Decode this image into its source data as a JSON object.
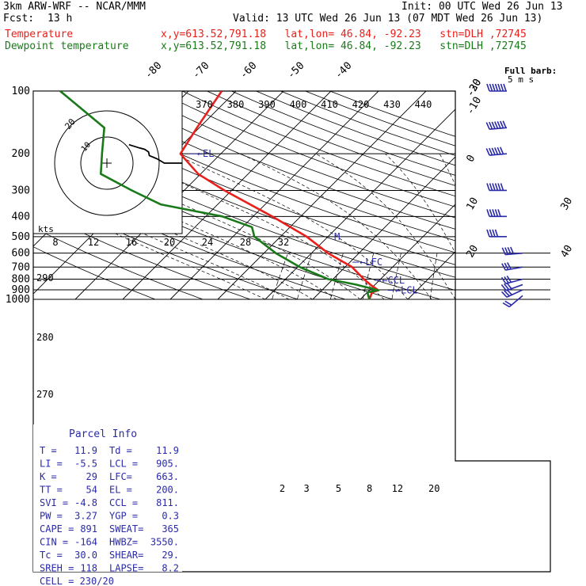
{
  "header": {
    "model": "3km ARW-WRF -- NCAR/MMM",
    "init": "Init: 00 UTC Wed 26 Jun 13",
    "fcst_label": "Fcst:",
    "fcst_value": "13 h",
    "valid": "Valid: 13 UTC Wed 26 Jun 13 (07 MDT Wed 26 Jun 13)",
    "temp_label": "Temperature",
    "temp_info": "x,y=613.52,791.18   lat,lon= 46.84, -92.23   stn=DLH ,72745",
    "dew_label": "Dewpoint temperature",
    "dew_info": "x,y=613.52,791.18   lat,lon= 46.84, -92.23   stn=DLH ,72745"
  },
  "colors": {
    "temperature": "#e8201c",
    "dewpoint": "#1a7a1a",
    "wind_barbs": "#2a2aaa",
    "parcel": "#2a2aaa",
    "hodograph": "#000000"
  },
  "chart_data": {
    "type": "line",
    "chart_kind": "skew-T log-p sounding",
    "pressure_levels": [
      100,
      200,
      300,
      400,
      500,
      600,
      700,
      800,
      900,
      1000
    ],
    "isotherm_labels_top": [
      -80,
      -70,
      -60,
      -50,
      -40
    ],
    "isotherm_labels_right": [
      -30,
      -20,
      -10,
      0,
      10,
      20,
      30,
      40
    ],
    "theta_labels": [
      370,
      380,
      390,
      400,
      410,
      420,
      430,
      440
    ],
    "theta_left_labels": [
      290,
      280,
      270
    ],
    "mixing_ratio_labels": [
      2,
      3,
      5,
      8,
      12,
      20
    ],
    "wind_scale_label": "kts",
    "wind_scale_ticks": [
      8,
      12,
      16,
      20,
      24,
      28,
      32
    ],
    "barb_legend": {
      "line1": "Full barb:",
      "line2": "5 m s"
    },
    "level_markers": [
      {
        "label": "EL",
        "p": 200
      },
      {
        "label": "M",
        "p": 500
      },
      {
        "label": "LFC",
        "p": 663
      },
      {
        "label": "CCL",
        "p": 811
      },
      {
        "label": "LCL",
        "p": 905
      }
    ],
    "hodograph_rings": [
      10,
      20
    ],
    "series": [
      {
        "name": "Temperature",
        "points": [
          {
            "p": 1000,
            "t": 11.9
          },
          {
            "p": 925,
            "t": 11.0
          },
          {
            "p": 905,
            "t": 11.9
          },
          {
            "p": 850,
            "t": 9.0
          },
          {
            "p": 800,
            "t": 6.5
          },
          {
            "p": 700,
            "t": 1.5
          },
          {
            "p": 600,
            "t": -6.5
          },
          {
            "p": 500,
            "t": -14.5
          },
          {
            "p": 400,
            "t": -26.0
          },
          {
            "p": 300,
            "t": -41.5
          },
          {
            "p": 250,
            "t": -50.5
          },
          {
            "p": 200,
            "t": -58.5
          },
          {
            "p": 150,
            "t": -60.5
          },
          {
            "p": 100,
            "t": -63.0
          }
        ]
      },
      {
        "name": "Dewpoint temperature",
        "points": [
          {
            "p": 1000,
            "t": 11.9
          },
          {
            "p": 925,
            "t": 10.0
          },
          {
            "p": 905,
            "t": 11.9
          },
          {
            "p": 850,
            "t": 6.0
          },
          {
            "p": 800,
            "t": -1.0
          },
          {
            "p": 700,
            "t": -9.5
          },
          {
            "p": 600,
            "t": -17.5
          },
          {
            "p": 500,
            "t": -25.5
          },
          {
            "p": 450,
            "t": -28.0
          },
          {
            "p": 400,
            "t": -36.5
          },
          {
            "p": 350,
            "t": -52.0
          },
          {
            "p": 300,
            "t": -61.0
          },
          {
            "p": 250,
            "t": -71.0
          },
          {
            "p": 200,
            "t": -75.0
          },
          {
            "p": 150,
            "t": -80.0
          },
          {
            "p": 100,
            "t": -97.0
          }
        ]
      }
    ],
    "winds_kt": [
      {
        "p": 960,
        "dir": 230,
        "spd": 20
      },
      {
        "p": 900,
        "dir": 245,
        "spd": 25
      },
      {
        "p": 850,
        "dir": 250,
        "spd": 28
      },
      {
        "p": 800,
        "dir": 255,
        "spd": 30
      },
      {
        "p": 700,
        "dir": 260,
        "spd": 30
      },
      {
        "p": 600,
        "dir": 265,
        "spd": 35
      },
      {
        "p": 500,
        "dir": 270,
        "spd": 40
      },
      {
        "p": 400,
        "dir": 270,
        "spd": 45
      },
      {
        "p": 300,
        "dir": 270,
        "spd": 55
      },
      {
        "p": 200,
        "dir": 265,
        "spd": 60
      },
      {
        "p": 150,
        "dir": 265,
        "spd": 70
      },
      {
        "p": 100,
        "dir": 270,
        "spd": 70
      }
    ]
  },
  "parcel_info": {
    "title": "Parcel Info",
    "rows": [
      [
        "T  =",
        "11.9",
        "Td =",
        "11.9"
      ],
      [
        "LI =",
        "-5.5",
        "LCL =",
        "905."
      ],
      [
        "K  =",
        "29",
        "LFC=",
        "663."
      ],
      [
        "TT =",
        "54",
        "EL =",
        "200."
      ],
      [
        "SVI =",
        "-4.8",
        "CCL =",
        "811."
      ],
      [
        "PW =",
        "3.27",
        "YGP =",
        "0.3"
      ],
      [
        "CAPE =",
        "891",
        "SWEAT=",
        "365"
      ],
      [
        "CIN =",
        "-164",
        "HWBZ=",
        "3550."
      ],
      [
        "Tc =",
        "30.0",
        "SHEAR=",
        "29."
      ],
      [
        "SREH =",
        "118",
        "LAPSE=",
        "8.2"
      ]
    ],
    "cell": "CELL = 230/20"
  }
}
